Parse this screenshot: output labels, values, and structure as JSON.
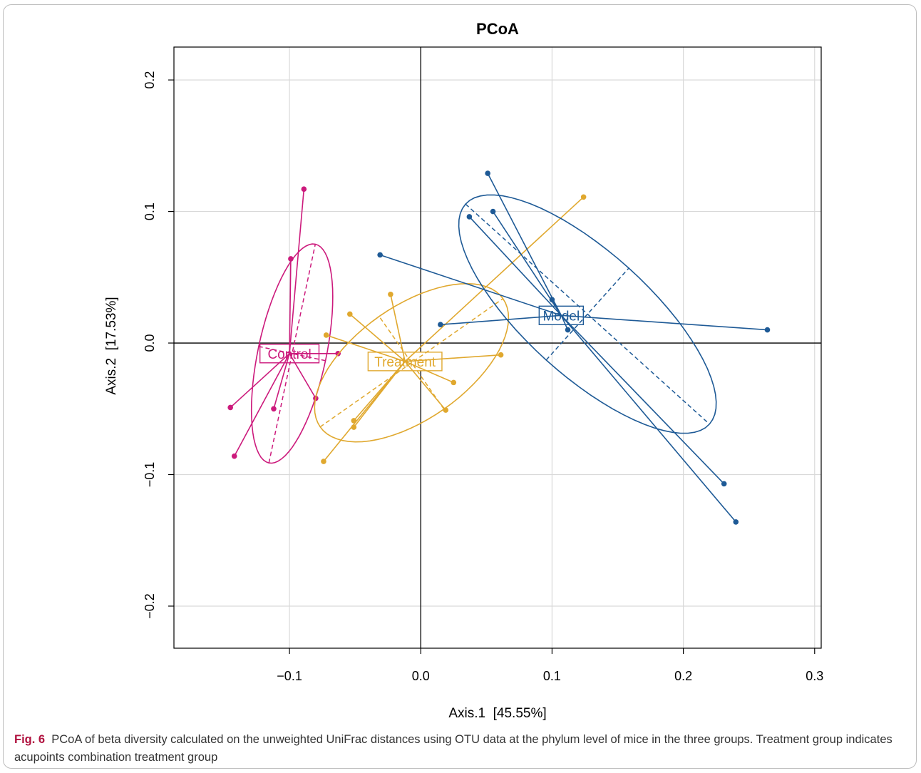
{
  "chart_data": {
    "type": "scatter",
    "title": "PCoA",
    "xlabel": "Axis.1  [45.55%]",
    "ylabel": "Axis.2  [17.53%]",
    "xlim": [
      -0.188,
      0.305
    ],
    "ylim": [
      -0.232,
      0.225
    ],
    "xticks": [
      -0.1,
      0.0,
      0.1,
      0.2,
      0.3
    ],
    "xtick_labels": [
      "−0.1",
      "0.0",
      "0.1",
      "0.2",
      "0.3"
    ],
    "yticks": [
      -0.2,
      -0.1,
      0.0,
      0.1,
      0.2
    ],
    "ytick_labels": [
      "−0.2",
      "−0.1",
      "0.0",
      "0.1",
      "0.2"
    ],
    "grid": true,
    "reference_lines": {
      "x": 0.0,
      "y": 0.0
    },
    "groups": [
      {
        "name": "Control",
        "color": "#cc1a7c",
        "centroid": [
          -0.1,
          -0.008
        ],
        "points": [
          [
            -0.089,
            0.117
          ],
          [
            -0.099,
            0.064
          ],
          [
            -0.063,
            -0.008
          ],
          [
            -0.145,
            -0.049
          ],
          [
            -0.112,
            -0.05
          ],
          [
            -0.08,
            -0.042
          ],
          [
            -0.142,
            -0.086
          ]
        ],
        "ellipse": {
          "center": [
            -0.098,
            -0.008
          ],
          "a": 0.085,
          "b": 0.026,
          "angle_deg": 78
        }
      },
      {
        "name": "Treatment",
        "color": "#e0a82e",
        "centroid": [
          -0.012,
          -0.014
        ],
        "points": [
          [
            0.124,
            0.111
          ],
          [
            -0.023,
            0.037
          ],
          [
            -0.054,
            0.022
          ],
          [
            -0.072,
            0.006
          ],
          [
            0.061,
            -0.009
          ],
          [
            0.025,
            -0.03
          ],
          [
            0.019,
            -0.051
          ],
          [
            -0.051,
            -0.059
          ],
          [
            -0.051,
            -0.064
          ],
          [
            -0.074,
            -0.09
          ]
        ],
        "ellipse": {
          "center": [
            -0.007,
            -0.015
          ],
          "a": 0.085,
          "b": 0.043,
          "angle_deg": 35
        }
      },
      {
        "name": "Model",
        "color": "#1e5a96",
        "centroid": [
          0.107,
          0.021
        ],
        "points": [
          [
            0.051,
            0.129
          ],
          [
            0.055,
            0.1
          ],
          [
            0.037,
            0.096
          ],
          [
            -0.031,
            0.067
          ],
          [
            0.1,
            0.033
          ],
          [
            0.015,
            0.014
          ],
          [
            0.112,
            0.01
          ],
          [
            0.264,
            0.01
          ],
          [
            0.231,
            -0.107
          ],
          [
            0.24,
            -0.136
          ]
        ],
        "ellipse": {
          "center": [
            0.127,
            0.022
          ],
          "a": 0.125,
          "b": 0.047,
          "angle_deg": -42
        }
      }
    ]
  },
  "caption": {
    "label": "Fig. 6",
    "text": "PCoA of beta diversity calculated on the unweighted UniFrac distances using OTU data at the phylum level of mice in the three groups. Treatment group indicates acupoints combination treatment group"
  }
}
